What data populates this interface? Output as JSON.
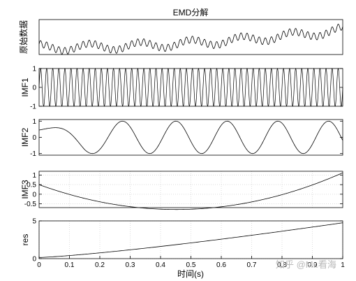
{
  "chart_data": [
    {
      "type": "line",
      "title": "EMD分解",
      "ylabel": "原始数据",
      "xlim": [
        0,
        1
      ],
      "ylim": [
        -2,
        8
      ],
      "yticks": [],
      "xticks": [],
      "grid": false,
      "series": [
        {
          "formula": "sin(2*pi*50*t) + cos(2*pi*6*t) + 5*t^2",
          "samples": 1000
        }
      ]
    },
    {
      "type": "line",
      "ylabel": "IMF1",
      "xlim": [
        0,
        1
      ],
      "ylim": [
        -1,
        1
      ],
      "yticks": [
        "-1",
        "0",
        "1"
      ],
      "xticks": [],
      "grid": false,
      "series": [
        {
          "formula": "sin(2*pi*50*t)",
          "samples": 2000
        }
      ]
    },
    {
      "type": "line",
      "ylabel": "IMF2",
      "xlim": [
        0,
        1
      ],
      "ylim": [
        -1.1,
        1.1
      ],
      "yticks": [
        "-1",
        "0",
        "1"
      ],
      "xticks": [],
      "grid": false,
      "series": [
        {
          "formula": "chirp: 0.45*cos(2*pi*1.6*t) at t=0 rising to cos(2*pi*6*t), min -1 at t=0.17",
          "samples": 500
        }
      ]
    },
    {
      "type": "line",
      "ylabel": "IMF3",
      "xlim": [
        0,
        1
      ],
      "ylim": [
        -0.7,
        1.2
      ],
      "yticks": [
        "-0.5",
        "0",
        "0.5",
        "1"
      ],
      "xticks": [],
      "grid": true,
      "series": [
        {
          "formula": "quadratic: 0.5 at t=0, min -0.65 near t=0.4, 1.12 at t=1",
          "samples": 200
        }
      ]
    },
    {
      "type": "line",
      "ylabel": "res",
      "xlabel": "时间(s)",
      "xlim": [
        0,
        1
      ],
      "ylim": [
        0,
        5
      ],
      "yticks": [
        "0",
        "5"
      ],
      "xticks": [
        "0",
        "0.1",
        "0.2",
        "0.3",
        "0.4",
        "0.5",
        "0.6",
        "0.7",
        "0.8",
        "0.9",
        "1"
      ],
      "grid": true,
      "series": [
        {
          "formula": "0.15 + 4.6*t^1.25",
          "samples": 200
        }
      ]
    }
  ],
  "watermark": "知乎 @Mr.看海"
}
